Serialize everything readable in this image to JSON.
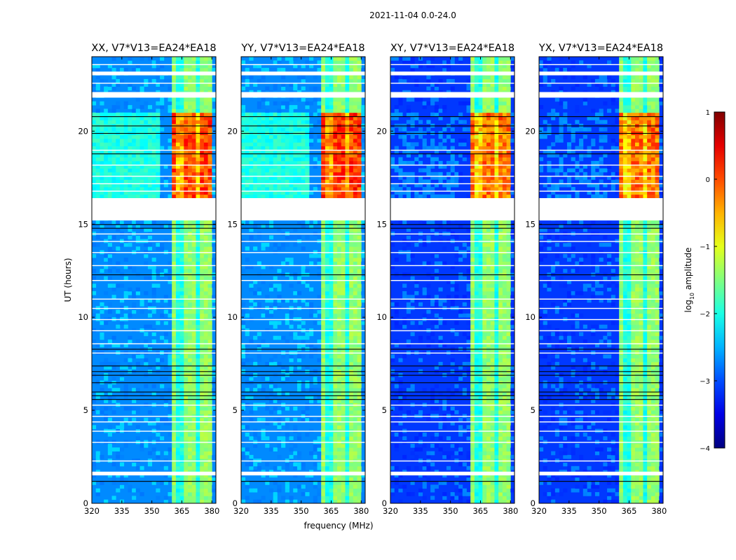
{
  "figure": {
    "suptitle": "2021-11-04 0.0-24.0"
  },
  "chart_data": [
    {
      "type": "heatmap",
      "title": "XX, V7*V13=EA24*EA18",
      "xlabel": "",
      "ylabel": "UT (hours)",
      "xlim": [
        320,
        382
      ],
      "ylim": [
        0,
        24
      ],
      "xticks": [
        320,
        335,
        350,
        365,
        380
      ],
      "yticks": [
        0,
        5,
        10,
        15,
        20
      ],
      "rfi_band_mhz": [
        360,
        379
      ],
      "rfi_peak_log10_amplitude": 0.3,
      "flagged_hours": [
        [
          15.2,
          16.4
        ],
        [
          1.5,
          1.7
        ],
        [
          23.0,
          23.2
        ],
        [
          21.8,
          22.1
        ]
      ]
    },
    {
      "type": "heatmap",
      "title": "YY, V7*V13=EA24*EA18",
      "xlabel": "frequency (MHz)",
      "ylabel": "",
      "xlim": [
        320,
        382
      ],
      "ylim": [
        0,
        24
      ],
      "xticks": [
        320,
        335,
        350,
        365,
        380
      ],
      "yticks": [
        0,
        5,
        10,
        15,
        20
      ],
      "rfi_band_mhz": [
        360,
        379
      ],
      "rfi_peak_log10_amplitude": 0.4,
      "flagged_hours": [
        [
          15.2,
          16.4
        ],
        [
          1.5,
          1.7
        ],
        [
          23.0,
          23.2
        ],
        [
          21.8,
          22.1
        ]
      ]
    },
    {
      "type": "heatmap",
      "title": "XY, V7*V13=EA24*EA18",
      "xlabel": "",
      "ylabel": "",
      "xlim": [
        320,
        382
      ],
      "ylim": [
        0,
        24
      ],
      "xticks": [
        320,
        335,
        350,
        365,
        380
      ],
      "yticks": [
        0,
        5,
        10,
        15,
        20
      ],
      "rfi_band_mhz": [
        360,
        379
      ],
      "rfi_peak_log10_amplitude": 0.1,
      "flagged_hours": [
        [
          15.2,
          16.4
        ],
        [
          1.5,
          1.7
        ],
        [
          23.0,
          23.2
        ],
        [
          21.8,
          22.1
        ]
      ]
    },
    {
      "type": "heatmap",
      "title": "YX, V7*V13=EA24*EA18",
      "xlabel": "",
      "ylabel": "",
      "xlim": [
        320,
        382
      ],
      "ylim": [
        0,
        24
      ],
      "xticks": [
        320,
        335,
        350,
        365,
        380
      ],
      "yticks": [
        0,
        5,
        10,
        15,
        20
      ],
      "rfi_band_mhz": [
        360,
        379
      ],
      "rfi_peak_log10_amplitude": 0.1,
      "flagged_hours": [
        [
          15.2,
          16.4
        ],
        [
          1.5,
          1.7
        ],
        [
          23.0,
          23.2
        ],
        [
          21.8,
          22.1
        ]
      ]
    }
  ],
  "colorbar": {
    "label": "log",
    "label_sub": "10",
    "label_suffix": " amplitude",
    "range": [
      -4,
      1
    ],
    "ticks": [
      1,
      0,
      -1,
      -2,
      -3,
      -4
    ],
    "tick_labels": [
      "1",
      "0",
      "−1",
      "−2",
      "−3",
      "−4"
    ],
    "colormap": "jet"
  }
}
